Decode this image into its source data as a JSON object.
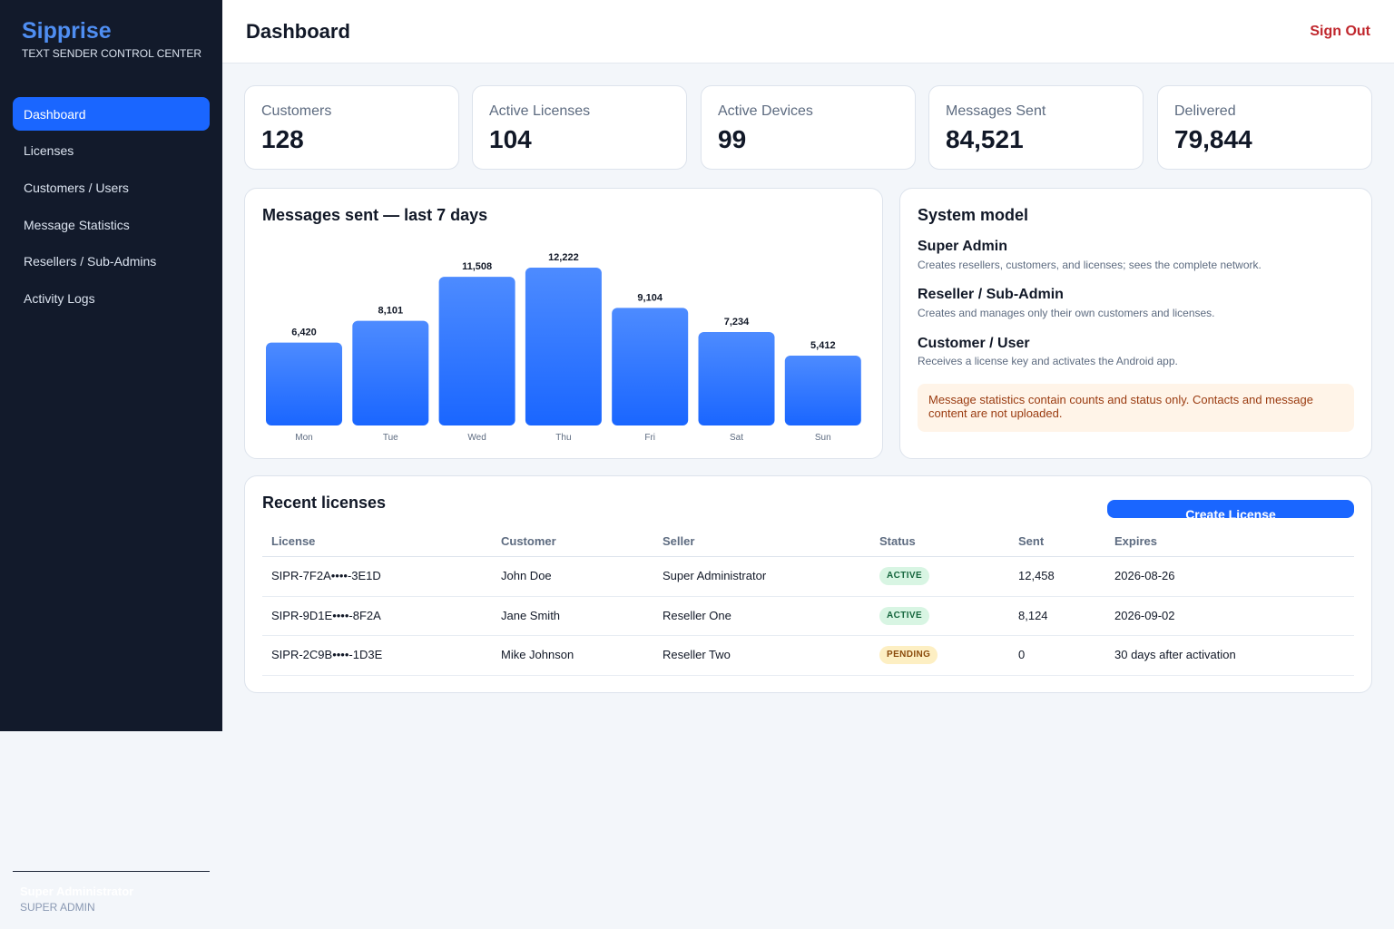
{
  "sidebar": {
    "brand": "Sipprise",
    "tagline": "TEXT SENDER CONTROL CENTER",
    "items": [
      {
        "label": "Dashboard",
        "active": true
      },
      {
        "label": "Licenses"
      },
      {
        "label": "Customers / Users"
      },
      {
        "label": "Message Statistics"
      },
      {
        "label": "Resellers / Sub-Admins"
      },
      {
        "label": "Activity Logs"
      }
    ],
    "user": {
      "name": "Super Administrator",
      "role": "SUPER ADMIN"
    }
  },
  "header": {
    "title": "Dashboard",
    "signout_label": "Sign Out"
  },
  "stats": [
    {
      "label": "Customers",
      "value": "128"
    },
    {
      "label": "Active Licenses",
      "value": "104"
    },
    {
      "label": "Active Devices",
      "value": "99"
    },
    {
      "label": "Messages Sent",
      "value": "84,521"
    },
    {
      "label": "Delivered",
      "value": "79,844"
    }
  ],
  "chart_data": {
    "type": "bar",
    "title": "Messages sent — last 7 days",
    "categories": [
      "Mon",
      "Tue",
      "Wed",
      "Thu",
      "Fri",
      "Sat",
      "Sun"
    ],
    "values": [
      6420,
      8101,
      11508,
      12222,
      9104,
      7234,
      5412
    ],
    "value_labels": [
      "6,420",
      "8,101",
      "11,508",
      "12,222",
      "9,104",
      "7,234",
      "5,412"
    ],
    "xlabel": "",
    "ylabel": "",
    "grid": false,
    "legend": "none",
    "bar_color": "#1a66ff"
  },
  "system_model": {
    "title": "System model",
    "roles": [
      {
        "title": "Super Admin",
        "desc": "Creates resellers, customers, and licenses; sees the complete network."
      },
      {
        "title": "Reseller / Sub-Admin",
        "desc": "Creates and manages only their own customers and licenses."
      },
      {
        "title": "Customer / User",
        "desc": "Receives a license key and activates the Android app."
      }
    ],
    "notice": "Message statistics contain counts and status only. Contacts and message content are not uploaded."
  },
  "recent_licenses": {
    "title": "Recent licenses",
    "create_label": "Create License",
    "columns": [
      "License",
      "Customer",
      "Seller",
      "Status",
      "Sent",
      "Expires"
    ],
    "rows": [
      {
        "license": "SIPR-7F2A••••-3E1D",
        "customer": "John Doe",
        "seller": "Super Administrator",
        "status": "ACTIVE",
        "sent": "12,458",
        "expires": "2026-08-26"
      },
      {
        "license": "SIPR-9D1E••••-8F2A",
        "customer": "Jane Smith",
        "seller": "Reseller One",
        "status": "ACTIVE",
        "sent": "8,124",
        "expires": "2026-09-02"
      },
      {
        "license": "SIPR-2C9B••••-1D3E",
        "customer": "Mike Johnson",
        "seller": "Reseller Two",
        "status": "PENDING",
        "sent": "0",
        "expires": "30 days after activation"
      }
    ]
  }
}
